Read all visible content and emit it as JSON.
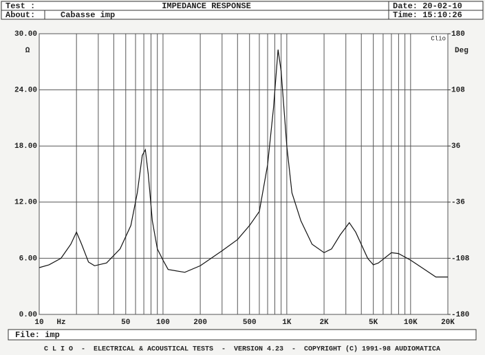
{
  "header": {
    "test_label": "Test :",
    "title": "IMPEDANCE RESPONSE",
    "date": "Date: 20-02-10",
    "about_label": "About:",
    "about": "Cabasse imp",
    "time": "Time: 15:10:26"
  },
  "chart_data": {
    "type": "line",
    "x": [
      10,
      12,
      15,
      18,
      20,
      22,
      25,
      28,
      35,
      45,
      55,
      62,
      68,
      72,
      76,
      82,
      90,
      100,
      110,
      150,
      200,
      300,
      400,
      500,
      600,
      700,
      780,
      850,
      900,
      1000,
      1100,
      1300,
      1600,
      2000,
      2300,
      2700,
      3200,
      3600,
      4500,
      5000,
      5500,
      7000,
      8000,
      10000,
      13000,
      16000,
      20000
    ],
    "values": [
      5.0,
      5.3,
      6.0,
      7.5,
      8.8,
      7.5,
      5.6,
      5.2,
      5.5,
      7.0,
      9.5,
      13,
      17,
      17.6,
      15,
      10,
      7.0,
      5.8,
      4.8,
      4.5,
      5.2,
      6.8,
      8.0,
      9.5,
      11,
      16,
      22,
      28.3,
      26,
      18,
      13,
      10,
      7.5,
      6.6,
      7.0,
      8.5,
      9.8,
      8.8,
      6.0,
      5.3,
      5.5,
      6.6,
      6.5,
      5.8,
      4.8,
      4.0,
      4.0
    ],
    "color": "#111111",
    "xlabel": "Hz",
    "ylabel": "Ω",
    "y2label": "Deg",
    "badge": "Clio",
    "log_x": true,
    "xlim": [
      10,
      20000
    ],
    "xticks": [
      10,
      50,
      100,
      200,
      500,
      {
        "value": 1000,
        "label": "1K"
      },
      {
        "value": 2000,
        "label": "2K"
      },
      {
        "value": 5000,
        "label": "5K"
      },
      {
        "value": 10000,
        "label": "10K"
      },
      {
        "value": 20000,
        "label": "20K"
      }
    ],
    "xgrid": [
      20,
      30,
      40,
      60,
      70,
      80,
      90,
      300,
      400,
      600,
      700,
      800,
      900,
      3000,
      4000,
      6000,
      7000,
      8000,
      9000
    ],
    "ylim": [
      0,
      30
    ],
    "yticks": [
      {
        "value": 0,
        "label": "0.00"
      },
      {
        "value": 6,
        "label": "6.00"
      },
      {
        "value": 12,
        "label": "12.00"
      },
      {
        "value": 18,
        "label": "18.00"
      },
      {
        "value": 24,
        "label": "24.00"
      },
      {
        "value": 30,
        "label": "30.00"
      }
    ],
    "y2lim": [
      -180,
      180
    ],
    "y2ticks": [
      -180,
      -108,
      -36,
      36,
      108,
      180
    ],
    "grid": true
  },
  "footer": {
    "file": "File: imp",
    "banner": "C L I O  -  ELECTRICAL & ACOUSTICAL TESTS  -  VERSION 4.23  -  COPYRIGHT (C) 1991-98 AUDIOMATICA"
  }
}
